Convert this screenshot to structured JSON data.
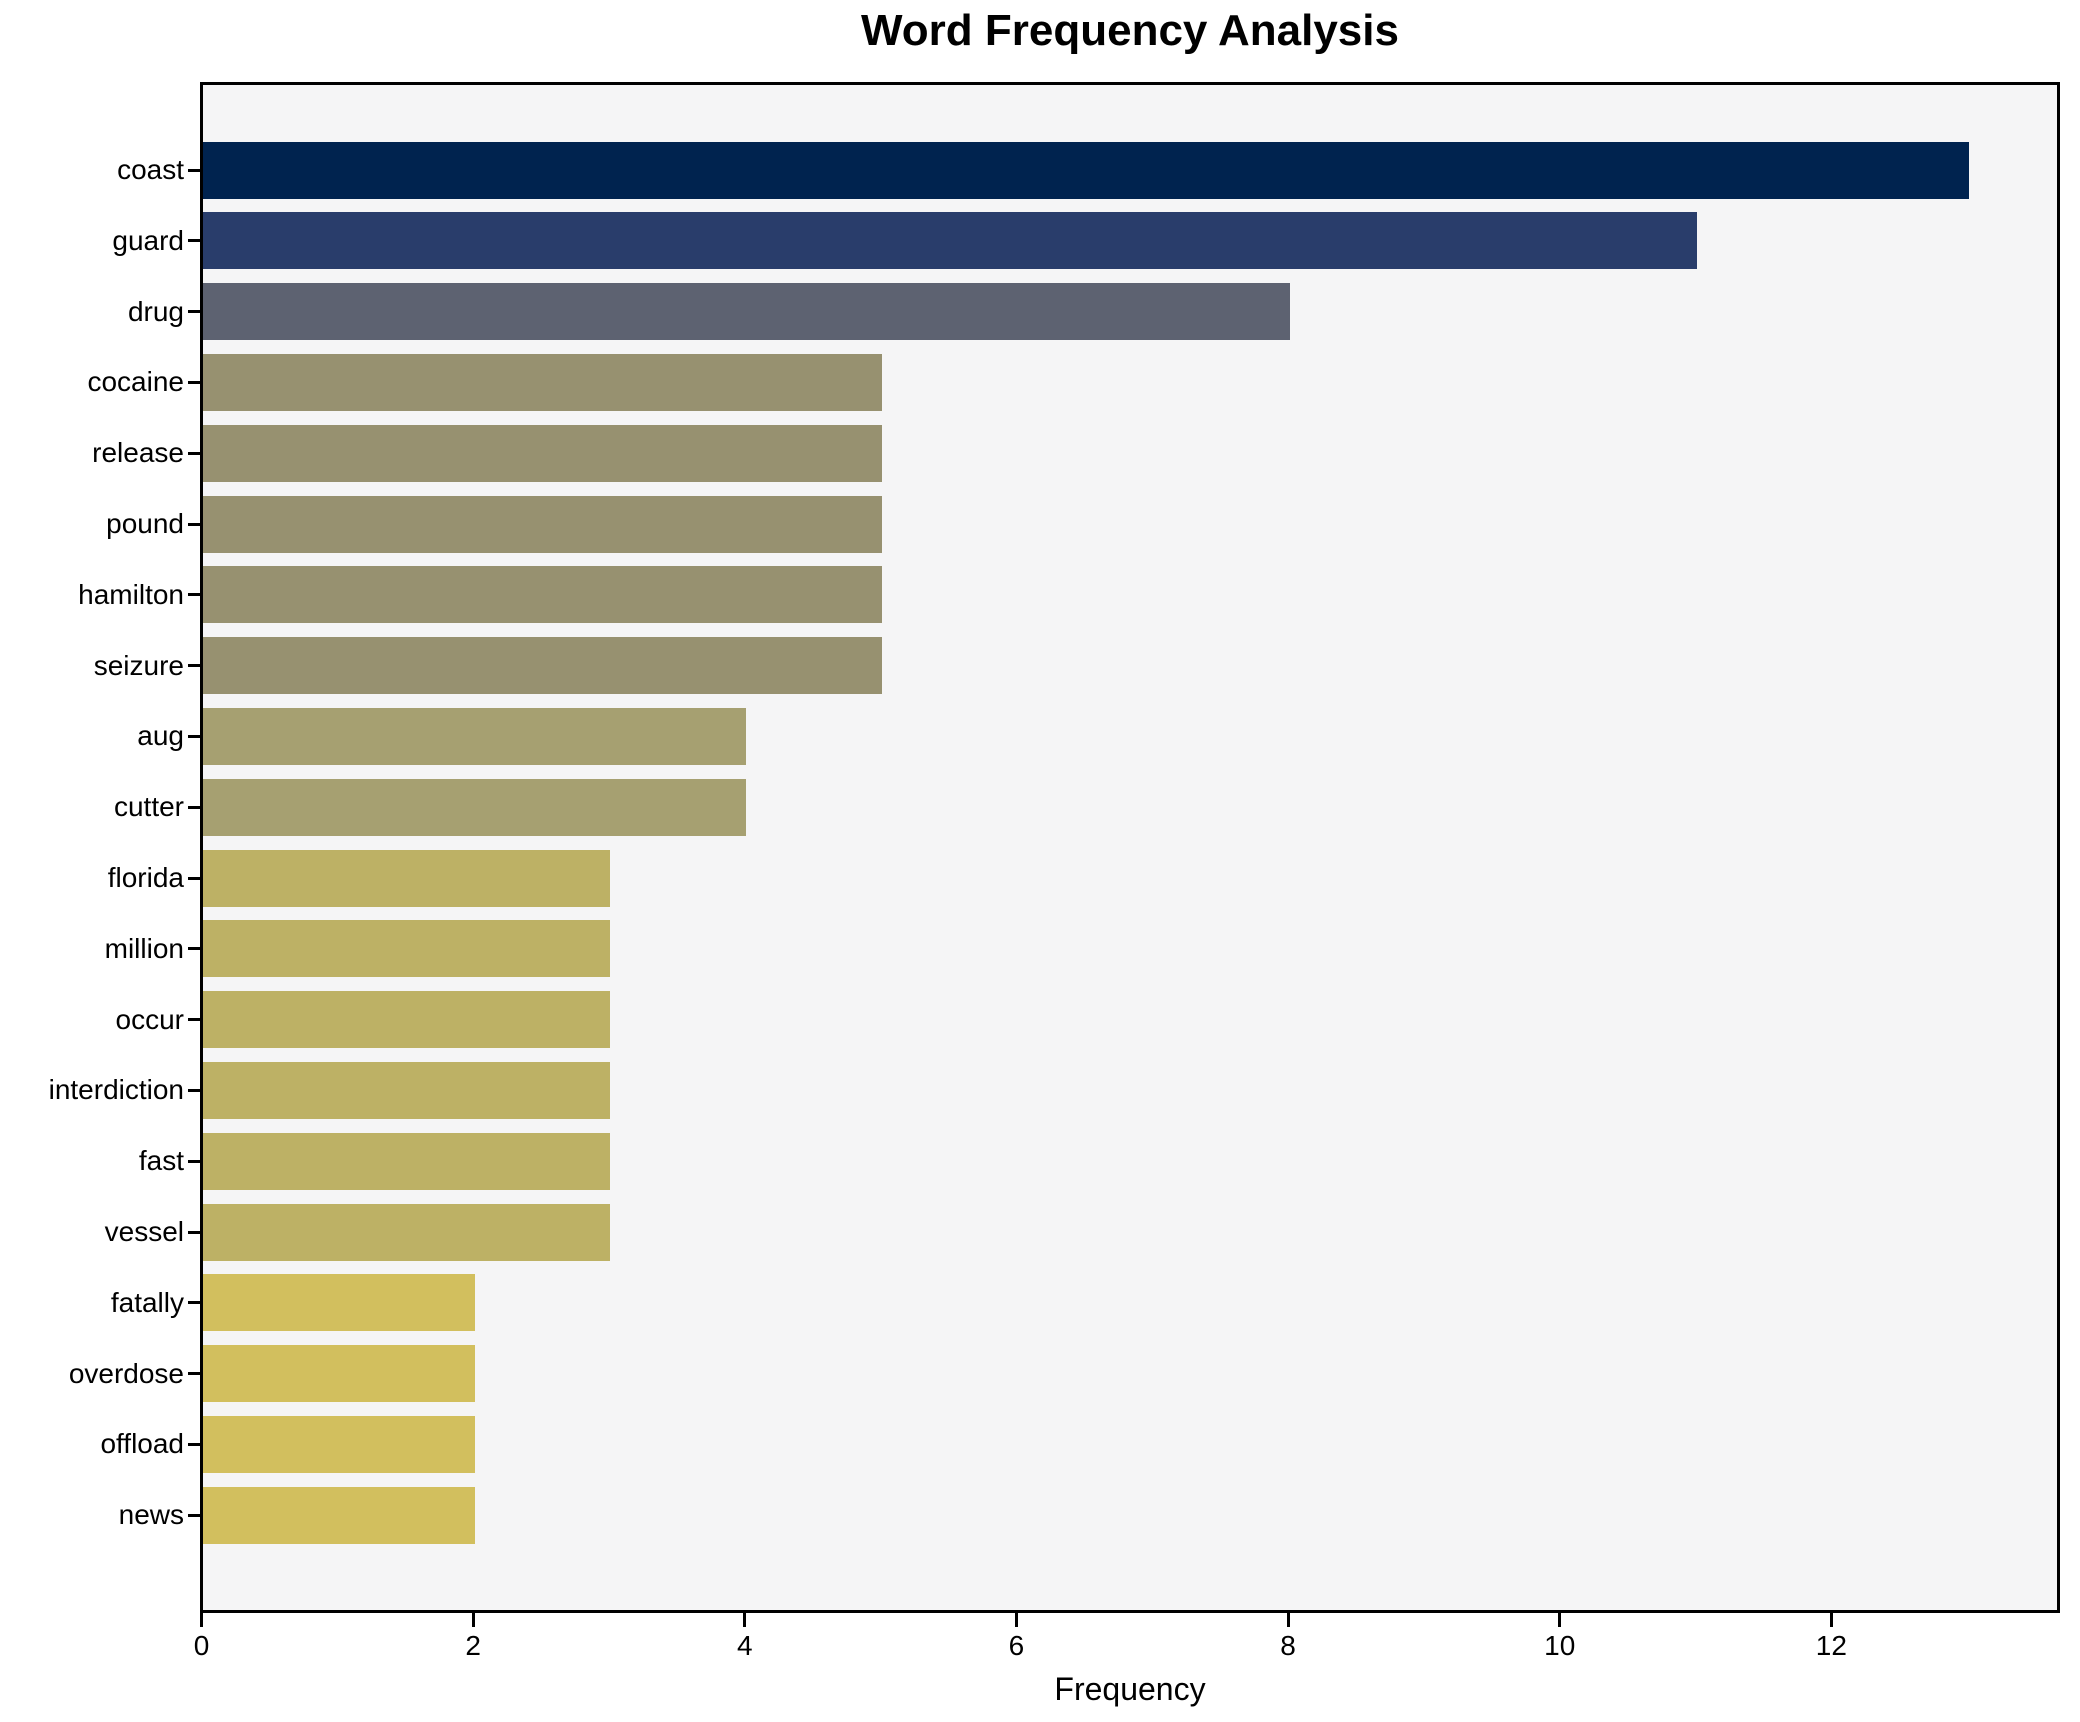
{
  "title": "Word Frequency Analysis",
  "chart_data": {
    "type": "bar",
    "orientation": "horizontal",
    "title": "Word Frequency Analysis",
    "xlabel": "Frequency",
    "ylabel": "",
    "xlim": [
      0,
      13.65
    ],
    "xticks": [
      0,
      2,
      4,
      6,
      8,
      10,
      12
    ],
    "grid": false,
    "legend": "none",
    "plot_background": "#f5f5f6",
    "figure_background": "#ffffff",
    "spine_color": "#000000",
    "categories": [
      "coast",
      "guard",
      "drug",
      "cocaine",
      "release",
      "pound",
      "hamilton",
      "seizure",
      "aug",
      "cutter",
      "florida",
      "million",
      "occur",
      "interdiction",
      "fast",
      "vessel",
      "fatally",
      "overdose",
      "offload",
      "news"
    ],
    "values": [
      13,
      11,
      8,
      5,
      5,
      5,
      5,
      5,
      4,
      4,
      3,
      3,
      3,
      3,
      3,
      3,
      2,
      2,
      2,
      2
    ],
    "bar_colors": [
      "#00234f",
      "#293d6b",
      "#5d6271",
      "#979170",
      "#979170",
      "#979170",
      "#979170",
      "#979170",
      "#a6a071",
      "#a6a071",
      "#bdb165",
      "#bdb165",
      "#bdb165",
      "#bdb165",
      "#bdb165",
      "#bdb165",
      "#d2bf5e",
      "#d2bf5e",
      "#d2bf5e",
      "#d2bf5e"
    ]
  }
}
